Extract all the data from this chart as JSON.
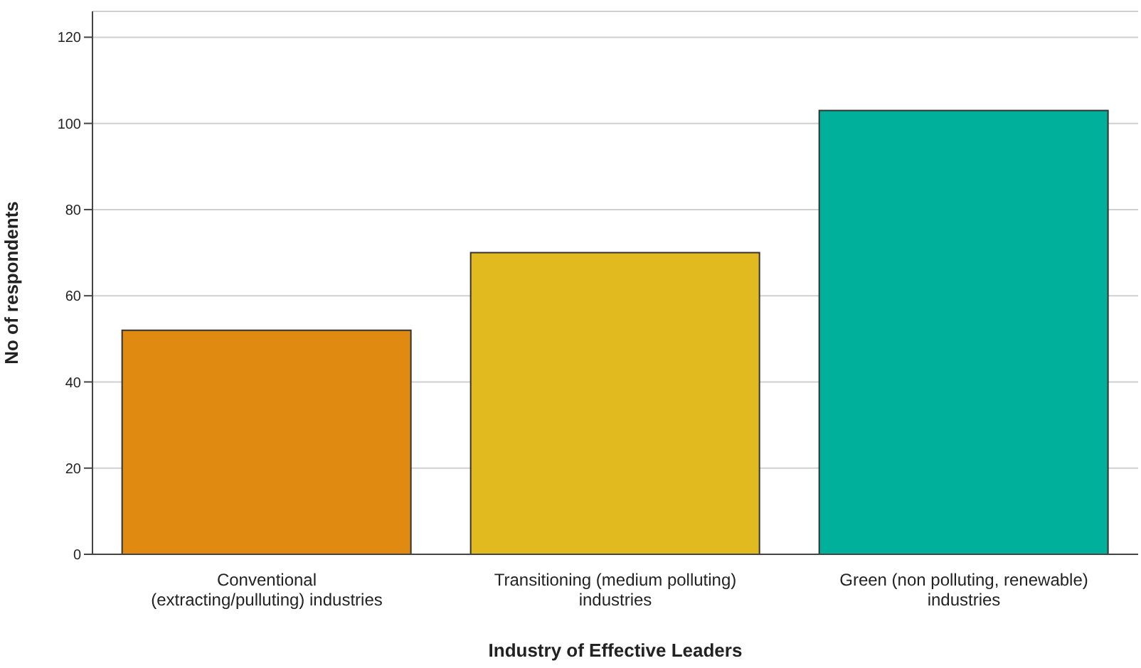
{
  "chart_data": {
    "type": "bar",
    "xlabel": "Industry of Effective Leaders",
    "ylabel": "No of respondents",
    "categories": [
      "Conventional (extracting/pulluting) industries",
      "Transitioning (medium polluting) industries",
      "Green (non polluting, renewable) industries"
    ],
    "values": [
      52,
      70,
      103
    ],
    "colors": [
      "#e08a12",
      "#e0ba1e",
      "#00b09a"
    ],
    "ylim": [
      0,
      126
    ],
    "yticks": [
      0,
      20,
      40,
      60,
      80,
      100,
      120
    ],
    "grid": "y",
    "legend": false
  }
}
